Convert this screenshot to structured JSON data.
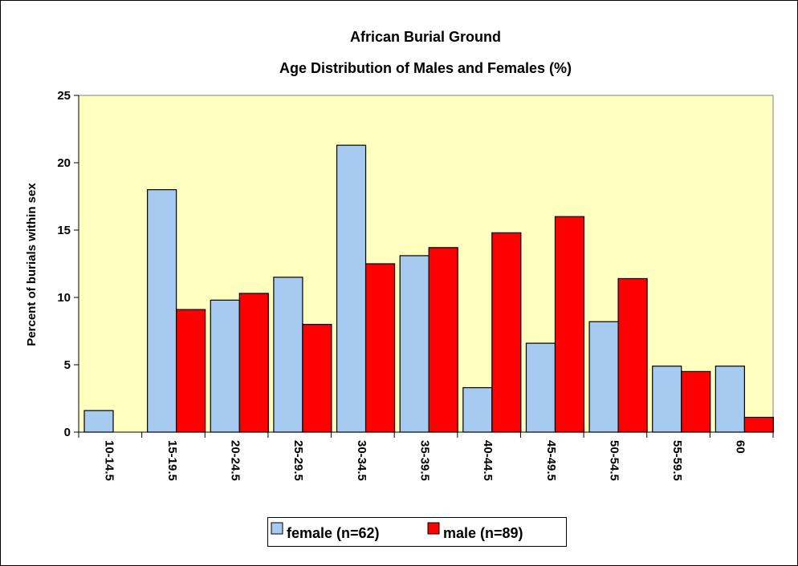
{
  "chart_data": {
    "type": "bar",
    "title": [
      "African Burial Ground",
      "Age Distribution of Males and Females (%)"
    ],
    "y_label": "Percent of burials within sex",
    "categories": [
      "10-14.5",
      "15-19.5",
      "20-24.5",
      "25-29.5",
      "30-34.5",
      "35-39.5",
      "40-44.5",
      "45-49.5",
      "50-54.5",
      "55-59.5",
      "60"
    ],
    "series": [
      {
        "name": "female (n=62)",
        "color": "#a6caf0",
        "values": [
          1.6,
          18.0,
          9.8,
          11.5,
          21.3,
          13.1,
          3.3,
          6.6,
          8.2,
          4.9,
          4.9
        ]
      },
      {
        "name": "male (n=89)",
        "color": "#ff0000",
        "values": [
          0,
          9.1,
          10.3,
          8.0,
          12.5,
          13.7,
          14.8,
          16.0,
          11.4,
          4.5,
          1.1
        ]
      }
    ],
    "ylim": [
      0,
      25
    ],
    "yticks": [
      0,
      5,
      10,
      15,
      20,
      25
    ],
    "grid": false,
    "legend": "bottom",
    "plot_background": "#ffffc0"
  }
}
